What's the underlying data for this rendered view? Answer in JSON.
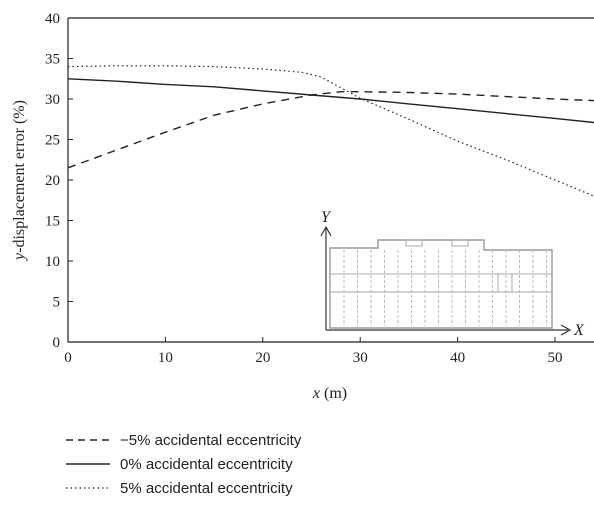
{
  "chart_data": {
    "type": "line",
    "xlabel": "x (m)",
    "ylabel": "y-displacement error (%)",
    "xlim": [
      0,
      54
    ],
    "ylim": [
      0,
      40
    ],
    "xticks": [
      0,
      10,
      20,
      30,
      40,
      50
    ],
    "yticks": [
      0,
      5,
      10,
      15,
      20,
      25,
      30,
      35,
      40
    ],
    "grid": false,
    "legend_position": "below",
    "series": [
      {
        "name": "−5% accidental eccentricity",
        "style": "dashed",
        "x": [
          0,
          5,
          10,
          15,
          20,
          25,
          28,
          30,
          35,
          40,
          45,
          50,
          54
        ],
        "y": [
          21.5,
          23.7,
          25.9,
          28.0,
          29.4,
          30.5,
          30.9,
          30.9,
          30.8,
          30.6,
          30.3,
          30.0,
          29.8
        ]
      },
      {
        "name": "0% accidental eccentricity",
        "style": "solid",
        "x": [
          0,
          5,
          10,
          15,
          20,
          25,
          30,
          35,
          40,
          45,
          50,
          54
        ],
        "y": [
          32.5,
          32.2,
          31.8,
          31.5,
          31.0,
          30.5,
          30.0,
          29.4,
          28.8,
          28.2,
          27.6,
          27.1
        ]
      },
      {
        "name": "5% accidental eccentricity",
        "style": "dotted",
        "x": [
          0,
          5,
          10,
          15,
          20,
          24,
          26,
          28,
          30,
          35,
          40,
          45,
          50,
          54
        ],
        "y": [
          34.0,
          34.1,
          34.1,
          34.0,
          33.7,
          33.3,
          32.7,
          31.4,
          30.1,
          27.5,
          24.8,
          22.5,
          20.0,
          18.0
        ]
      }
    ],
    "inset": {
      "y_axis_label": "Y",
      "x_axis_label": "X"
    }
  }
}
